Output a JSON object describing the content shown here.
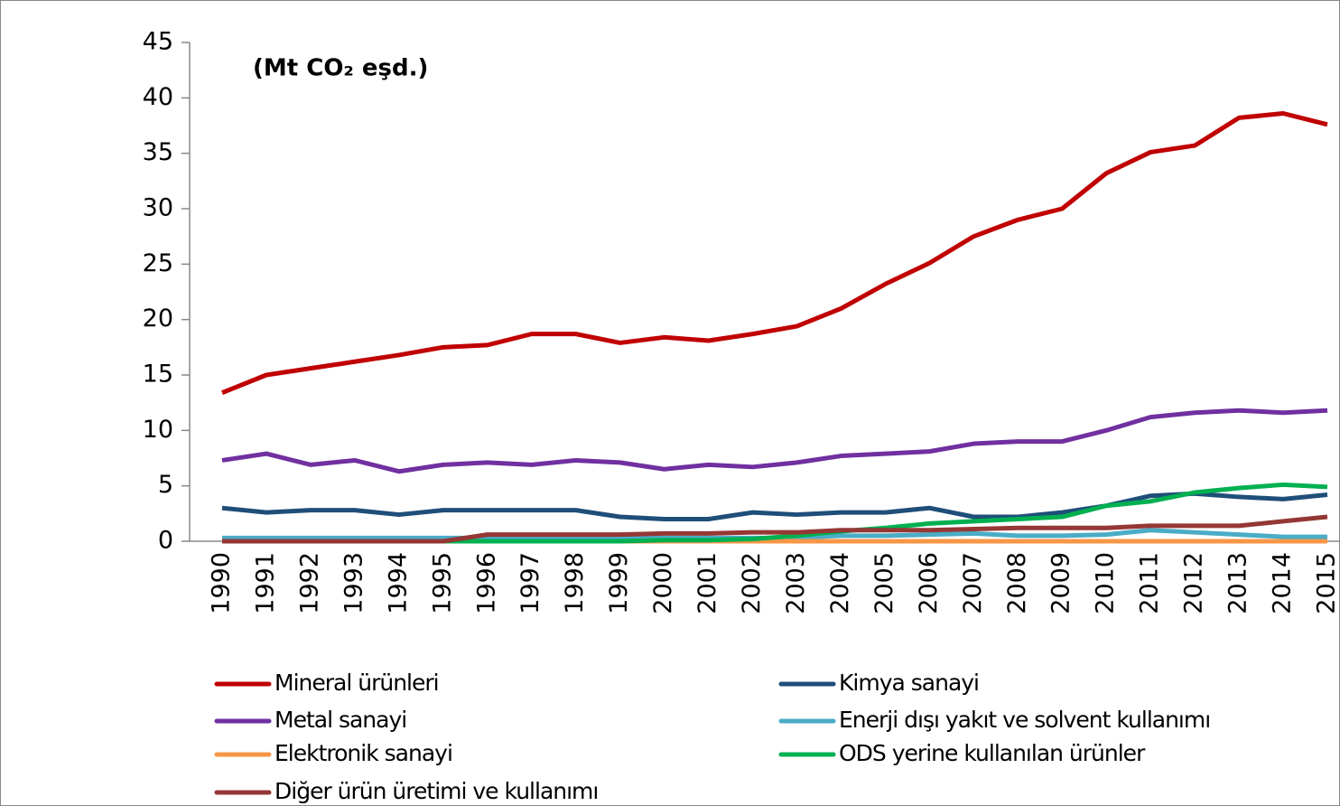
{
  "chart_data": {
    "type": "line",
    "title": "(Mt CO₂ eşd.)",
    "categories": [
      "1990",
      "1991",
      "1992",
      "1993",
      "1994",
      "1995",
      "1996",
      "1997",
      "1998",
      "1999",
      "2000",
      "2001",
      "2002",
      "2003",
      "2004",
      "2005",
      "2006",
      "2007",
      "2008",
      "2009",
      "2010",
      "2011",
      "2012",
      "2013",
      "2014",
      "2015"
    ],
    "ylim": [
      0,
      45
    ],
    "yticks": [
      0,
      5,
      10,
      15,
      20,
      25,
      30,
      35,
      40,
      45
    ],
    "series": [
      {
        "name": "Mineral ürünleri",
        "color": "#c00000",
        "values": [
          13.4,
          15.0,
          15.6,
          16.2,
          16.8,
          17.5,
          17.7,
          18.7,
          18.7,
          17.9,
          18.4,
          18.1,
          18.7,
          19.4,
          21.0,
          23.2,
          25.1,
          27.5,
          29.0,
          30.0,
          33.2,
          35.1,
          35.7,
          38.2,
          38.6,
          37.6
        ]
      },
      {
        "name": "Kimya sanayi",
        "color": "#1f4e79",
        "values": [
          3.0,
          2.6,
          2.8,
          2.8,
          2.4,
          2.8,
          2.8,
          2.8,
          2.8,
          2.2,
          2.0,
          2.0,
          2.6,
          2.4,
          2.6,
          2.6,
          3.0,
          2.2,
          2.2,
          2.6,
          3.2,
          4.1,
          4.3,
          4.0,
          3.8,
          4.2
        ]
      },
      {
        "name": "Metal sanayi",
        "color": "#7030a0",
        "values": [
          7.3,
          7.9,
          6.9,
          7.3,
          6.3,
          6.9,
          7.1,
          6.9,
          7.3,
          7.1,
          6.5,
          6.9,
          6.7,
          7.1,
          7.7,
          7.9,
          8.1,
          8.8,
          9.0,
          9.0,
          10.0,
          11.2,
          11.6,
          11.8,
          11.6,
          11.8
        ]
      },
      {
        "name": "Enerji dışı yakıt ve solvent kullanımı",
        "color": "#4bacc6",
        "values": [
          0.3,
          0.3,
          0.3,
          0.3,
          0.3,
          0.3,
          0.3,
          0.3,
          0.3,
          0.3,
          0.3,
          0.3,
          0.3,
          0.3,
          0.5,
          0.5,
          0.6,
          0.7,
          0.5,
          0.5,
          0.6,
          1.0,
          0.8,
          0.6,
          0.4,
          0.4
        ]
      },
      {
        "name": "Elektronik sanayi",
        "color": "#f79646",
        "values": [
          0,
          0,
          0,
          0,
          0,
          0,
          0,
          0,
          0,
          0,
          0,
          0,
          0,
          0,
          0,
          0,
          0,
          0,
          0,
          0,
          0,
          0,
          0,
          0,
          0,
          0
        ]
      },
      {
        "name": "ODS yerine kullanılan ürünler",
        "color": "#00b050",
        "values": [
          0,
          0,
          0,
          0,
          0,
          0,
          0,
          0,
          0,
          0,
          0.1,
          0.1,
          0.2,
          0.5,
          0.9,
          1.2,
          1.6,
          1.8,
          2.0,
          2.2,
          3.2,
          3.6,
          4.4,
          4.8,
          5.1,
          4.9
        ]
      },
      {
        "name": "Diğer ürün üretimi ve kullanımı",
        "color": "#953735",
        "values": [
          0,
          0,
          0,
          0,
          0,
          0,
          0.6,
          0.6,
          0.6,
          0.6,
          0.7,
          0.7,
          0.8,
          0.8,
          1.0,
          1.0,
          1.0,
          1.1,
          1.2,
          1.2,
          1.2,
          1.4,
          1.4,
          1.4,
          1.8,
          2.2
        ]
      }
    ]
  }
}
